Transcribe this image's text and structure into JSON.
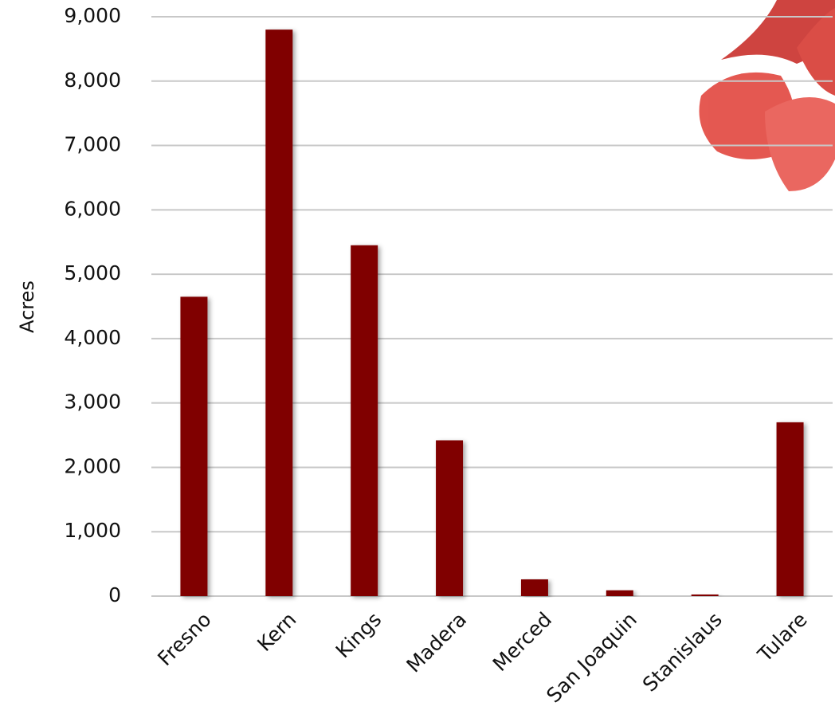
{
  "chart_data": {
    "type": "bar",
    "y_label": "Acres",
    "categories": [
      "Fresno",
      "Kern",
      "Kings",
      "Madera",
      "Merced",
      "San Joaquin",
      "Stanislaus",
      "Tulare"
    ],
    "values": [
      4650,
      8800,
      5450,
      2420,
      260,
      90,
      25,
      2700
    ],
    "color": "#800000",
    "ylim": [
      0,
      9000
    ],
    "yticks": [
      0,
      {
        "value": 1000,
        "label": "1,000"
      },
      {
        "value": 2000,
        "label": "2,000"
      },
      {
        "value": 3000,
        "label": "3,000"
      },
      {
        "value": 4000,
        "label": "4,000"
      },
      {
        "value": 5000,
        "label": "5,000"
      },
      {
        "value": 6000,
        "label": "6,000"
      },
      {
        "value": 7000,
        "label": "7,000"
      },
      {
        "value": 8000,
        "label": "8,000"
      },
      {
        "value": 9000,
        "label": "9,000"
      }
    ],
    "grid": true
  }
}
